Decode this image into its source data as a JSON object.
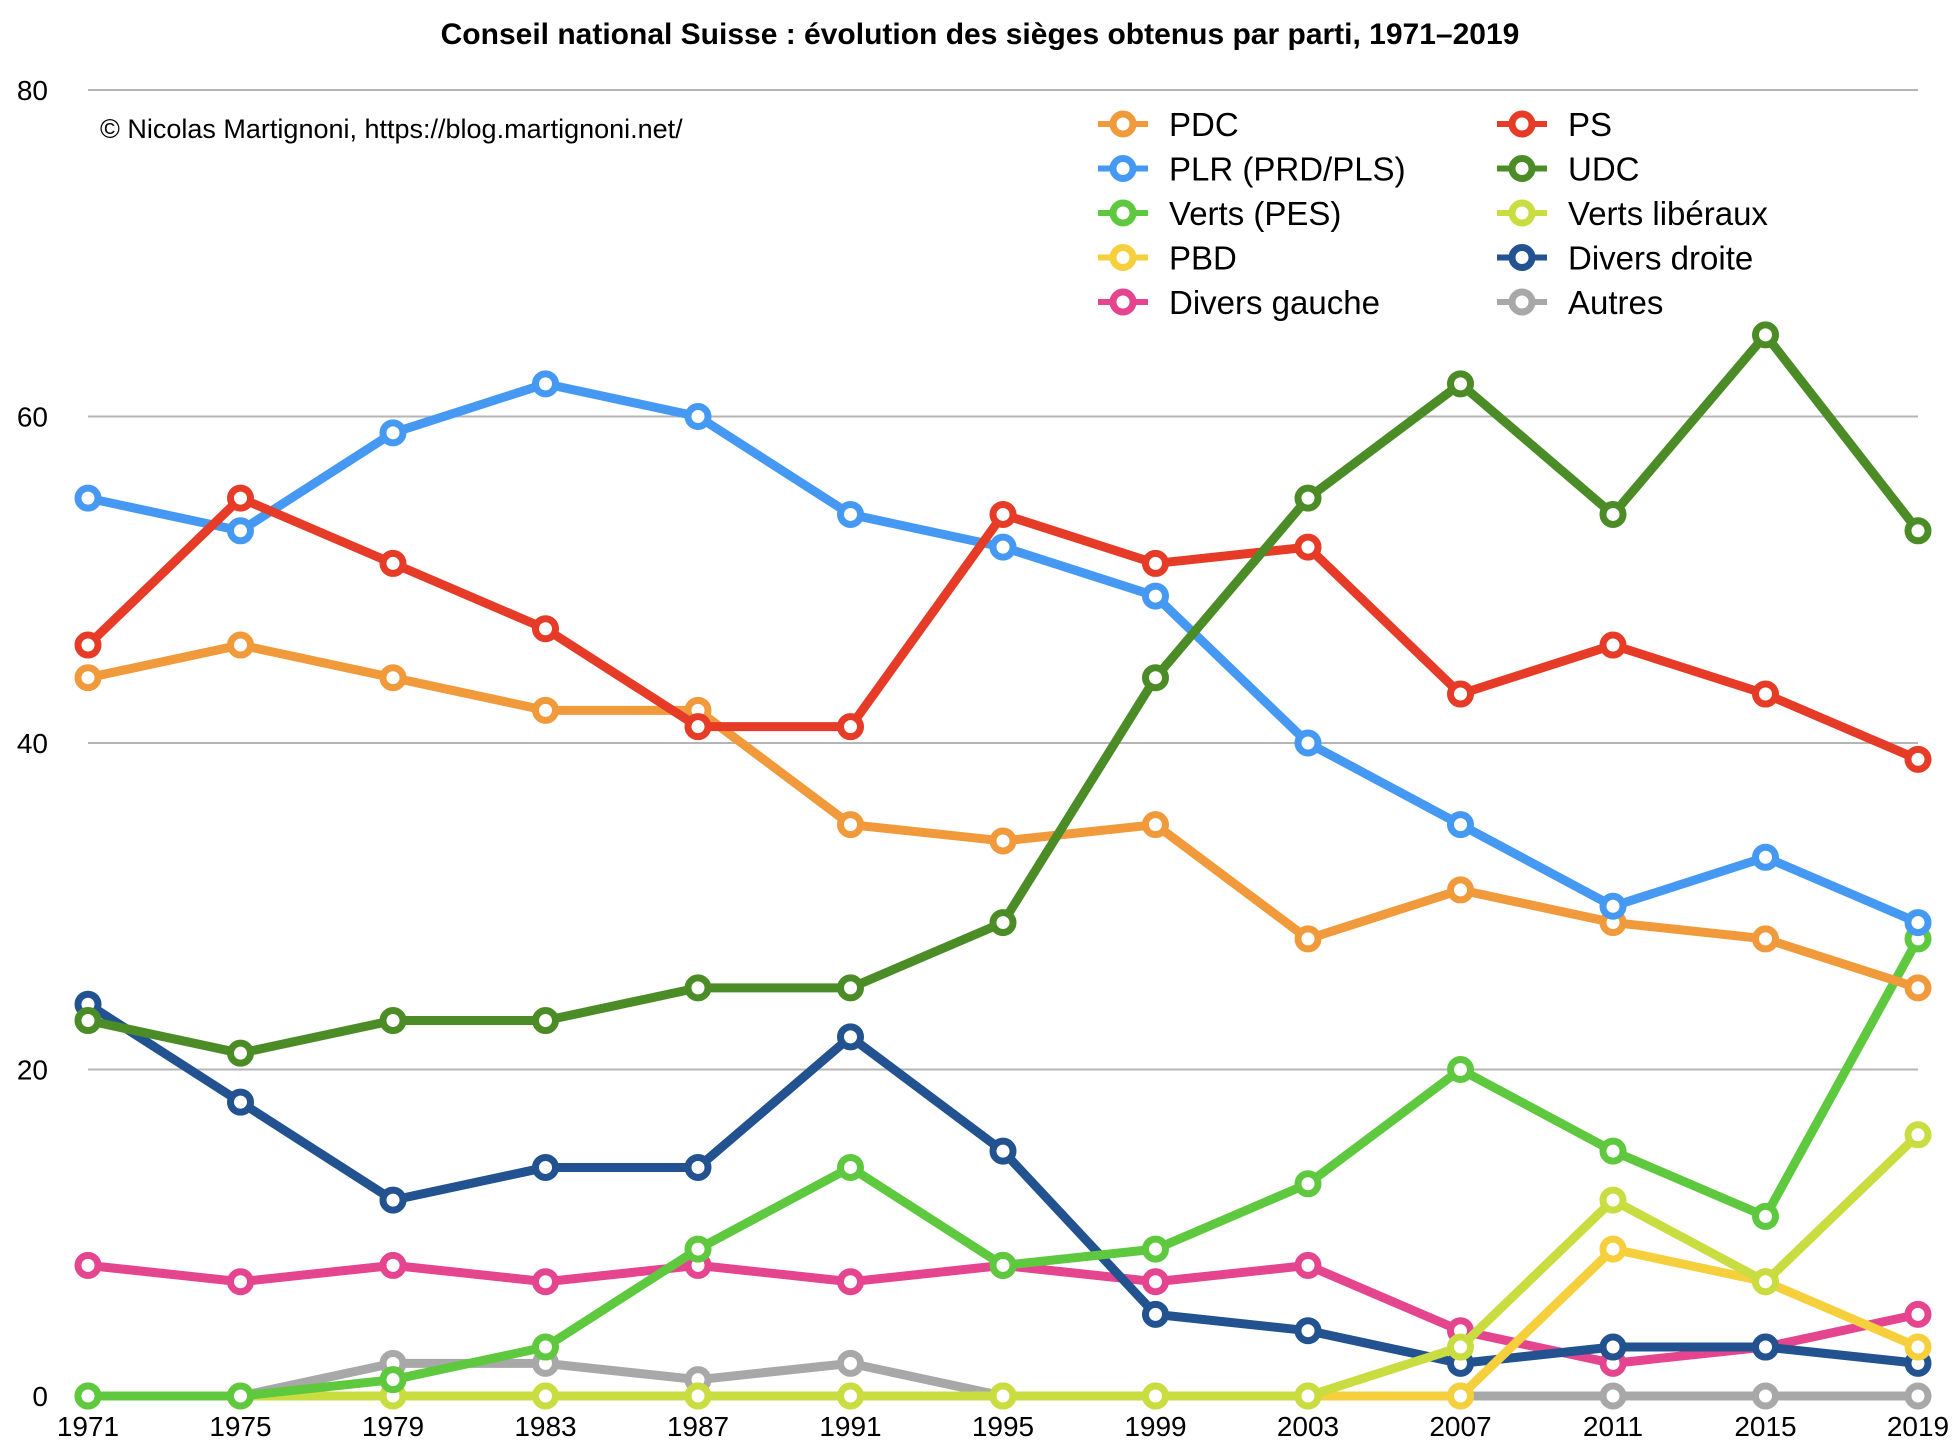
{
  "chart_data": {
    "type": "line",
    "title": "Conseil national Suisse : évolution des sièges obtenus par parti, 1971–2019",
    "annotation": "© Nicolas Martignoni, https://blog.martignoni.net/",
    "xlabel": "",
    "ylabel": "",
    "x": [
      1971,
      1975,
      1979,
      1983,
      1987,
      1991,
      1995,
      1999,
      2003,
      2007,
      2011,
      2015,
      2019
    ],
    "ylim": [
      0,
      80
    ],
    "yticks": [
      0,
      20,
      40,
      60,
      80
    ],
    "grid": true,
    "legend_position": "top-right",
    "series": [
      {
        "name": "Autres",
        "color": "#a8a8a8",
        "values": [
          0,
          0,
          2,
          2,
          1,
          2,
          0,
          0,
          0,
          0,
          0,
          0,
          0
        ]
      },
      {
        "name": "Divers gauche",
        "color": "#e5458f",
        "values": [
          8,
          7,
          8,
          7,
          8,
          7,
          8,
          7,
          8,
          4,
          2,
          3,
          5
        ]
      },
      {
        "name": "Divers droite",
        "color": "#22528f",
        "values": [
          24,
          18,
          12,
          14,
          14,
          22,
          15,
          5,
          4,
          2,
          3,
          3,
          2
        ]
      },
      {
        "name": "PBD",
        "color": "#f6cf3d",
        "values": [
          0,
          0,
          0,
          0,
          0,
          0,
          0,
          0,
          0,
          0,
          9,
          7,
          3
        ]
      },
      {
        "name": "Verts libéraux",
        "color": "#c9dc40",
        "values": [
          0,
          0,
          0,
          0,
          0,
          0,
          0,
          0,
          0,
          3,
          12,
          7,
          16
        ]
      },
      {
        "name": "Verts (PES)",
        "color": "#5ec93f",
        "values": [
          0,
          0,
          1,
          3,
          9,
          14,
          8,
          9,
          13,
          20,
          15,
          11,
          28
        ]
      },
      {
        "name": "PDC",
        "color": "#f09a3b",
        "values": [
          44,
          46,
          44,
          42,
          42,
          35,
          34,
          35,
          28,
          31,
          29,
          28,
          25
        ]
      },
      {
        "name": "PLR (PRD/PLS)",
        "color": "#4699f2",
        "values": [
          55,
          53,
          59,
          62,
          60,
          54,
          52,
          49,
          40,
          35,
          30,
          33,
          29
        ]
      },
      {
        "name": "PS",
        "color": "#e63b27",
        "values": [
          46,
          55,
          51,
          47,
          41,
          41,
          54,
          51,
          52,
          43,
          46,
          43,
          39
        ]
      },
      {
        "name": "UDC",
        "color": "#4b8c27",
        "values": [
          23,
          21,
          23,
          23,
          25,
          25,
          29,
          44,
          55,
          62,
          54,
          65,
          53
        ]
      }
    ],
    "legend": [
      [
        "PDC",
        "PS"
      ],
      [
        "PLR (PRD/PLS)",
        "UDC"
      ],
      [
        "Verts (PES)",
        "Verts libéraux"
      ],
      [
        "PBD",
        "Divers droite"
      ],
      [
        "Divers gauche",
        "Autres"
      ]
    ]
  }
}
